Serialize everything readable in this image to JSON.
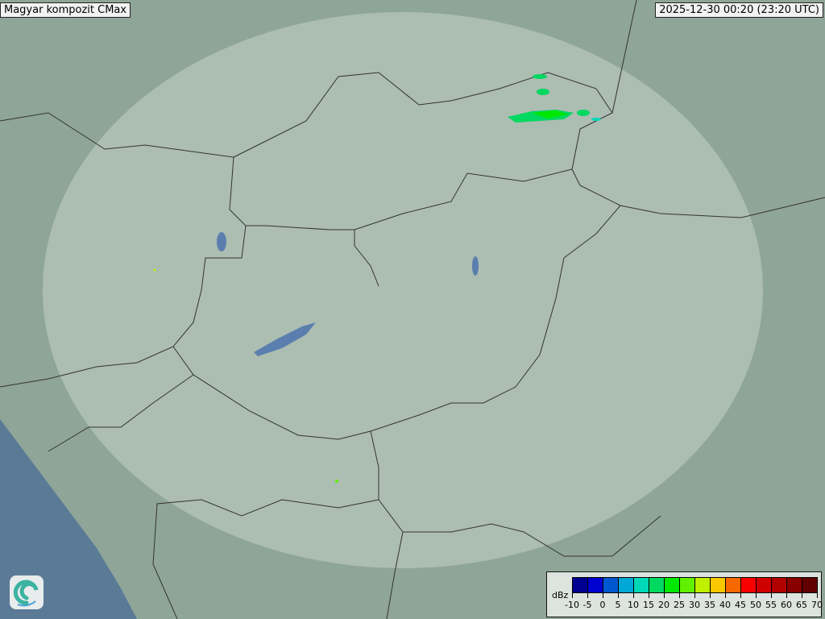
{
  "header": {
    "title": "Magyar kompozit  CMax",
    "timestamp": "2025-12-30 00:20 (23:20 UTC)"
  },
  "legend": {
    "unit": "dBz",
    "ticks": [
      "-10",
      "-5",
      "0",
      "5",
      "10",
      "15",
      "20",
      "25",
      "30",
      "35",
      "40",
      "45",
      "50",
      "55",
      "60",
      "65",
      "70"
    ],
    "colors": [
      "#000090",
      "#0000d0",
      "#0058d0",
      "#00a8d8",
      "#00d8b8",
      "#00d860",
      "#00e800",
      "#60f000",
      "#c0f000",
      "#f8c800",
      "#f86800",
      "#f80000",
      "#d00000",
      "#b00000",
      "#880000",
      "#600000"
    ]
  },
  "logo": {
    "icon": "swirl-logo-icon"
  },
  "colors": {
    "land": "#8fa598",
    "radar_coverage": "#b9c9bf",
    "water": "#5a7a96",
    "border": "#333333",
    "river": "#6e9ccc"
  }
}
